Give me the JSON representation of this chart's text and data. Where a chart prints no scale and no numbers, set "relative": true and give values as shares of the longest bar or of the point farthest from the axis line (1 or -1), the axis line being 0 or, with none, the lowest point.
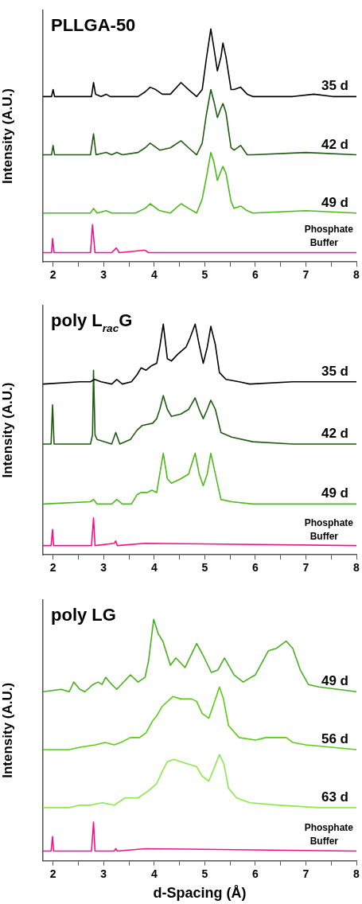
{
  "chart_data": [
    {
      "type": "line",
      "title": "PLLGA-50",
      "ylabel": "Intensity (A.U.)",
      "relative": true,
      "xlim": [
        1.8,
        8
      ],
      "xticks": [
        2,
        {
          "value": 2.5,
          "label": null
        },
        3,
        {
          "value": 3.5,
          "label": null
        },
        4,
        {
          "value": 4.5,
          "label": null
        },
        5,
        {
          "value": 5.5,
          "label": null
        },
        6,
        {
          "value": 6.5,
          "label": null
        },
        7,
        {
          "value": 7.5,
          "label": null
        },
        8
      ],
      "series": [
        {
          "name": "35 d",
          "color": "#000000",
          "x": [
            1.8,
            1.97,
            2,
            2.03,
            2.53,
            2.76,
            2.8,
            2.84,
            2.95,
            3.05,
            3.13,
            3.68,
            3.82,
            3.92,
            4.03,
            4.16,
            4.32,
            4.53,
            4.68,
            4.84,
            4.95,
            5.03,
            5.12,
            5.18,
            5.25,
            5.32,
            5.36,
            5.42,
            5.52,
            5.58,
            5.71,
            5.84,
            5.95,
            6.74,
            7.16,
            7.53,
            8
          ],
          "values": [
            0.71,
            0.71,
            0.74,
            0.71,
            0.71,
            0.71,
            0.77,
            0.72,
            0.71,
            0.72,
            0.71,
            0.71,
            0.73,
            0.75,
            0.74,
            0.72,
            0.72,
            0.77,
            0.74,
            0.71,
            0.74,
            0.87,
            1,
            0.92,
            0.82,
            0.88,
            0.94,
            0.88,
            0.74,
            0.74,
            0.75,
            0.72,
            0.71,
            0.71,
            0.72,
            0.71,
            0.71
          ]
        },
        {
          "name": "42 d",
          "color": "#1f5a10",
          "x": [
            1.8,
            1.97,
            2,
            2.03,
            2.74,
            2.8,
            2.85,
            3.05,
            3.16,
            3.26,
            3.37,
            3.68,
            3.82,
            3.92,
            4.11,
            4.32,
            4.53,
            4.68,
            4.84,
            4.95,
            5.03,
            5.12,
            5.18,
            5.25,
            5.32,
            5.36,
            5.42,
            5.52,
            5.58,
            5.71,
            5.84,
            5.95,
            7,
            8
          ],
          "values": [
            0.46,
            0.46,
            0.5,
            0.46,
            0.46,
            0.55,
            0.46,
            0.47,
            0.46,
            0.47,
            0.46,
            0.47,
            0.49,
            0.51,
            0.48,
            0.49,
            0.52,
            0.49,
            0.46,
            0.51,
            0.63,
            0.74,
            0.69,
            0.62,
            0.66,
            0.68,
            0.64,
            0.49,
            0.48,
            0.5,
            0.46,
            0.46,
            0.47,
            0.46
          ]
        },
        {
          "name": "49 d",
          "color": "#4db81c",
          "x": [
            1.8,
            2.74,
            2.8,
            2.87,
            3.05,
            3.16,
            3.63,
            3.82,
            3.92,
            4.11,
            4.32,
            4.53,
            4.68,
            4.84,
            4.95,
            5.03,
            5.12,
            5.18,
            5.25,
            5.32,
            5.36,
            5.42,
            5.52,
            5.58,
            5.71,
            5.84,
            5.95,
            7,
            8
          ],
          "values": [
            0.21,
            0.21,
            0.23,
            0.21,
            0.22,
            0.21,
            0.21,
            0.23,
            0.25,
            0.22,
            0.21,
            0.25,
            0.23,
            0.21,
            0.27,
            0.36,
            0.47,
            0.43,
            0.35,
            0.39,
            0.41,
            0.38,
            0.26,
            0.23,
            0.24,
            0.22,
            0.21,
            0.22,
            0.21
          ]
        },
        {
          "name": "Phosphate Buffer",
          "color": "#f0148c",
          "x": [
            1.8,
            1.97,
            1.99,
            2.02,
            2.74,
            2.78,
            2.83,
            3.16,
            3.25,
            3.31,
            3.79,
            3.82,
            3.89,
            8
          ],
          "values": [
            0.04,
            0.04,
            0.1,
            0.04,
            0.04,
            0.16,
            0.04,
            0.04,
            0.06,
            0.04,
            0.05,
            0.05,
            0.04,
            0.04
          ]
        }
      ]
    },
    {
      "type": "line",
      "title": "poly L$_{rac}$G",
      "ylabel": "Intensity (A.U.)",
      "relative": true,
      "xlim": [
        1.8,
        8
      ],
      "xticks": [
        2,
        {
          "value": 2.5,
          "label": null
        },
        3,
        {
          "value": 3.5,
          "label": null
        },
        4,
        {
          "value": 4.5,
          "label": null
        },
        5,
        {
          "value": 5.5,
          "label": null
        },
        6,
        {
          "value": 6.5,
          "label": null
        },
        7,
        {
          "value": 7.5,
          "label": null
        },
        8
      ],
      "series": [
        {
          "name": "35 d",
          "color": "#000000",
          "x": [
            1.8,
            2.53,
            2.74,
            2.82,
            2.95,
            3.16,
            3.26,
            3.37,
            3.55,
            3.66,
            3.74,
            3.84,
            3.95,
            4.05,
            4.11,
            4.18,
            4.26,
            4.34,
            4.47,
            4.63,
            4.71,
            4.81,
            4.89,
            4.97,
            5.05,
            5.12,
            5.21,
            5.29,
            5.42,
            5.68,
            5.89,
            6.74,
            8
          ],
          "values": [
            0.74,
            0.75,
            0.75,
            0.76,
            0.75,
            0.74,
            0.76,
            0.74,
            0.75,
            0.78,
            0.81,
            0.8,
            0.82,
            0.83,
            0.9,
            1,
            0.85,
            0.84,
            0.87,
            0.9,
            0.94,
            1,
            0.91,
            0.83,
            0.9,
            0.99,
            0.91,
            0.79,
            0.76,
            0.75,
            0.74,
            0.75,
            0.75
          ]
        },
        {
          "name": "42 d",
          "color": "#1f5a10",
          "x": [
            1.8,
            1.96,
            1.99,
            2.02,
            2.74,
            2.78,
            2.8,
            2.83,
            2.87,
            3.16,
            3.24,
            3.32,
            3.53,
            3.66,
            3.76,
            3.97,
            4.05,
            4.11,
            4.18,
            4.26,
            4.34,
            4.53,
            4.68,
            4.81,
            4.89,
            4.97,
            5.05,
            5.12,
            5.21,
            5.32,
            5.53,
            5.95,
            6.74,
            8
          ],
          "values": [
            0.48,
            0.48,
            0.65,
            0.48,
            0.48,
            0.52,
            0.8,
            0.52,
            0.5,
            0.48,
            0.53,
            0.48,
            0.5,
            0.54,
            0.56,
            0.57,
            0.59,
            0.63,
            0.69,
            0.63,
            0.6,
            0.61,
            0.63,
            0.68,
            0.63,
            0.59,
            0.63,
            0.67,
            0.63,
            0.53,
            0.51,
            0.49,
            0.48,
            0.48
          ]
        },
        {
          "name": "49 d",
          "color": "#4db81c",
          "x": [
            1.8,
            2.74,
            2.8,
            2.87,
            3.16,
            3.26,
            3.37,
            3.55,
            3.66,
            3.74,
            3.87,
            3.95,
            4.05,
            4.11,
            4.18,
            4.26,
            4.34,
            4.53,
            4.68,
            4.81,
            4.89,
            4.97,
            5.05,
            5.12,
            5.21,
            5.32,
            5.53,
            5.95,
            8
          ],
          "values": [
            0.22,
            0.23,
            0.24,
            0.22,
            0.22,
            0.24,
            0.22,
            0.22,
            0.26,
            0.27,
            0.27,
            0.28,
            0.27,
            0.35,
            0.44,
            0.33,
            0.31,
            0.33,
            0.35,
            0.44,
            0.35,
            0.3,
            0.35,
            0.44,
            0.35,
            0.24,
            0.23,
            0.22,
            0.22
          ]
        },
        {
          "name": "Phosphate Buffer",
          "color": "#f0148c",
          "x": [
            1.8,
            1.96,
            1.99,
            2.01,
            2.76,
            2.8,
            2.83,
            3.21,
            3.24,
            3.27,
            3.82,
            8
          ],
          "values": [
            0.04,
            0.04,
            0.11,
            0.04,
            0.04,
            0.16,
            0.04,
            0.05,
            0.06,
            0.04,
            0.05,
            0.04
          ]
        }
      ]
    },
    {
      "type": "line",
      "title": "poly LG",
      "xlabel": "d-Spacing (Å)",
      "ylabel": "Intensity (A.U.)",
      "relative": true,
      "xlim": [
        1.8,
        8
      ],
      "xticks": [
        2,
        {
          "value": 2.5,
          "label": null
        },
        3,
        {
          "value": 3.5,
          "label": null
        },
        4,
        {
          "value": 4.5,
          "label": null
        },
        5,
        {
          "value": 5.5,
          "label": null
        },
        6,
        {
          "value": 6.5,
          "label": null
        },
        7,
        {
          "value": 7.5,
          "label": null
        },
        8
      ],
      "series": [
        {
          "name": "49 d",
          "color": "#46b01e",
          "x": [
            1.8,
            2.16,
            2.32,
            2.41,
            2.53,
            2.63,
            2.79,
            2.89,
            2.97,
            3.04,
            3.16,
            3.26,
            3.53,
            3.68,
            3.82,
            3.89,
            3.99,
            4.08,
            4.17,
            4.32,
            4.43,
            4.61,
            4.84,
            4.97,
            5.13,
            5.26,
            5.39,
            5.58,
            5.76,
            6,
            6.26,
            6.42,
            6.61,
            6.74,
            6.89,
            7.05,
            7.26,
            8
          ],
          "values": [
            0.7,
            0.71,
            0.7,
            0.74,
            0.71,
            0.7,
            0.73,
            0.74,
            0.73,
            0.76,
            0.73,
            0.71,
            0.77,
            0.74,
            0.76,
            0.83,
            1,
            0.94,
            0.91,
            0.81,
            0.84,
            0.8,
            0.9,
            0.85,
            0.78,
            0.79,
            0.84,
            0.77,
            0.74,
            0.77,
            0.87,
            0.88,
            0.91,
            0.88,
            0.79,
            0.73,
            0.72,
            0.7
          ]
        },
        {
          "name": "56 d",
          "color": "#5acc16",
          "x": [
            1.8,
            2.32,
            2.53,
            2.84,
            3.03,
            3.21,
            3.34,
            3.53,
            3.71,
            3.84,
            3.97,
            4.05,
            4.16,
            4.37,
            4.53,
            4.74,
            4.84,
            4.95,
            5.08,
            5.18,
            5.29,
            5.37,
            5.47,
            5.68,
            6,
            6.21,
            6.61,
            6.74,
            7,
            8
          ],
          "values": [
            0.46,
            0.46,
            0.47,
            0.48,
            0.49,
            0.48,
            0.49,
            0.51,
            0.51,
            0.53,
            0.58,
            0.6,
            0.64,
            0.68,
            0.67,
            0.67,
            0.66,
            0.61,
            0.59,
            0.65,
            0.72,
            0.67,
            0.56,
            0.51,
            0.5,
            0.51,
            0.51,
            0.49,
            0.48,
            0.46
          ]
        },
        {
          "name": "63 d",
          "color": "#8de84c",
          "x": [
            1.8,
            2.32,
            2.53,
            2.74,
            2.97,
            3.21,
            3.42,
            3.68,
            3.89,
            4.05,
            4.16,
            4.26,
            4.39,
            4.53,
            4.68,
            4.84,
            4.95,
            5.08,
            5.18,
            5.29,
            5.38,
            5.47,
            5.63,
            5.89,
            6.47,
            7.26,
            8
          ],
          "values": [
            0.22,
            0.22,
            0.23,
            0.23,
            0.24,
            0.23,
            0.26,
            0.26,
            0.29,
            0.32,
            0.37,
            0.41,
            0.42,
            0.41,
            0.4,
            0.39,
            0.35,
            0.33,
            0.38,
            0.44,
            0.4,
            0.3,
            0.26,
            0.24,
            0.23,
            0.22,
            0.22
          ]
        },
        {
          "name": "Phosphate Buffer",
          "color": "#f0148c",
          "x": [
            1.8,
            1.96,
            1.99,
            2.01,
            2.76,
            2.8,
            2.83,
            3.21,
            3.24,
            3.27,
            3.82,
            8
          ],
          "values": [
            0.04,
            0.04,
            0.1,
            0.04,
            0.04,
            0.16,
            0.04,
            0.04,
            0.05,
            0.04,
            0.05,
            0.04
          ]
        }
      ]
    }
  ]
}
